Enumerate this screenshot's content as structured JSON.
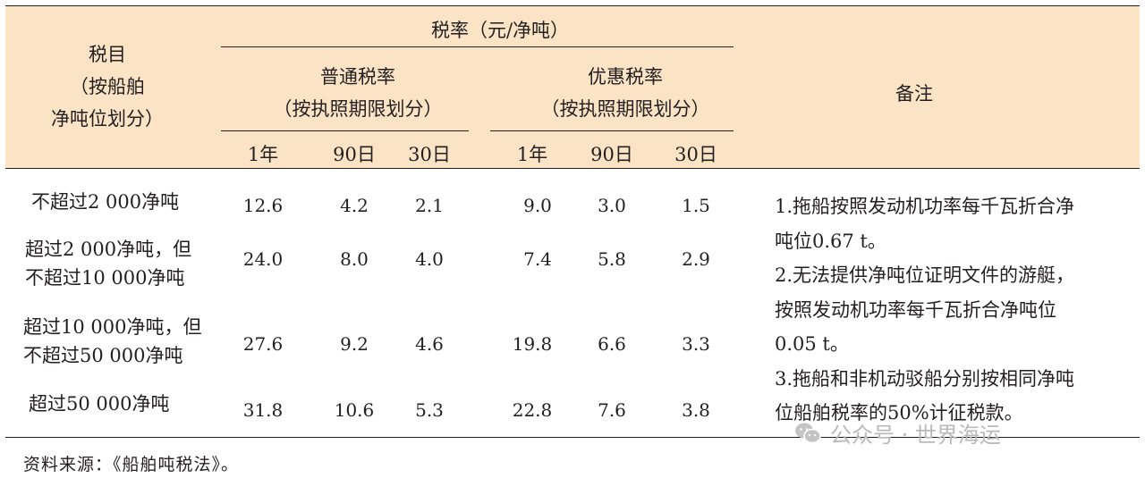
{
  "table": {
    "header": {
      "tax_item": [
        "税目",
        "（按船舶",
        "净吨位划分）"
      ],
      "rate_group": "税率（元/净吨）",
      "normal_rate": [
        "普通税率",
        "（按执照期限划分）"
      ],
      "preferential_rate": [
        "优惠税率",
        "（按执照期限划分）"
      ],
      "periods": [
        "1年",
        "90日",
        "30日",
        "1年",
        "90日",
        "30日"
      ],
      "remarks": "备注"
    },
    "rows": [
      {
        "item": [
          "不超过2 000净吨"
        ],
        "values": [
          "12.6",
          "4.2",
          "2.1",
          "9.0",
          "3.0",
          "1.5"
        ]
      },
      {
        "item": [
          "超过2 000净吨，但",
          "不超过10 000净吨"
        ],
        "values": [
          "24.0",
          "8.0",
          "4.0",
          "7.4",
          "5.8",
          "2.9"
        ]
      },
      {
        "item": [
          "超过10 000净吨，但",
          "不超过50 000净吨"
        ],
        "values": [
          "27.6",
          "9.2",
          "4.6",
          "19.8",
          "6.6",
          "3.3"
        ]
      },
      {
        "item": [
          "超过50 000净吨"
        ],
        "values": [
          "31.8",
          "10.6",
          "5.3",
          "22.8",
          "7.6",
          "3.8"
        ]
      }
    ],
    "remarks": [
      "1.拖船按照发动机功率每千瓦折合净",
      "吨位0.67 t。",
      "2.无法提供净吨位证明文件的游艇，",
      "按照发动机功率每千瓦折合净吨位",
      "0.05 t。",
      "3.拖船和非机动驳船分别按相同净吨",
      "位船舶税率的50%计征税款。"
    ]
  },
  "source": "资料来源：《船舶吨税法》。",
  "watermark": {
    "icon": "wechat-icon",
    "text": "公众号 · 世界海运"
  }
}
